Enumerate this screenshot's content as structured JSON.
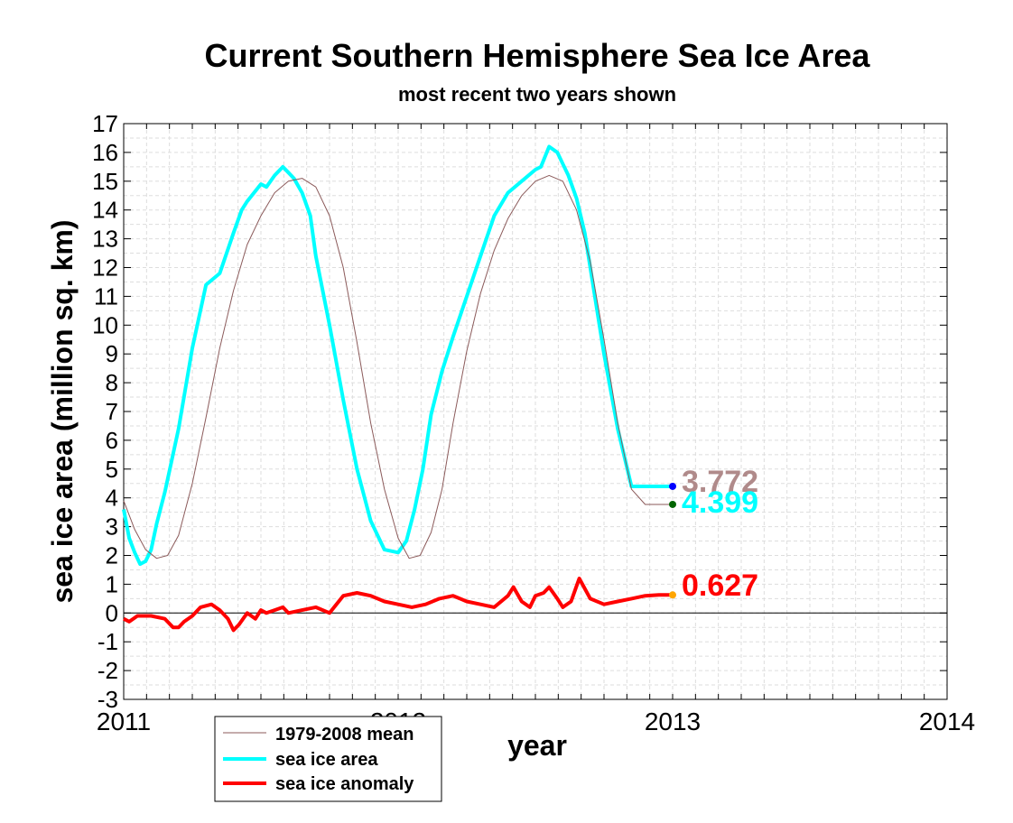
{
  "chart_data": {
    "type": "line",
    "title": "Current Southern Hemisphere Sea Ice Area",
    "subtitle": "most recent two years shown",
    "xlabel": "year",
    "ylabel": "sea ice area (million sq. km)",
    "xlim": [
      2011,
      2014
    ],
    "ylim": [
      -3,
      17
    ],
    "grid": true,
    "x_tick_labels": [
      "2011",
      "2012",
      "2013",
      "2014"
    ],
    "y_tick_labels": [
      "-3",
      "-2",
      "-1",
      "0",
      "1",
      "2",
      "3",
      "4",
      "5",
      "6",
      "7",
      "8",
      "9",
      "10",
      "11",
      "12",
      "13",
      "14",
      "15",
      "16",
      "17"
    ],
    "legend": {
      "placement": "bottom-left",
      "entries": [
        "1979-2008 mean",
        "sea ice area",
        "sea ice anomaly"
      ]
    },
    "series": [
      {
        "name": "1979-2008 mean",
        "color": "#8b5a5a",
        "x": [
          2011.0,
          2011.04,
          2011.08,
          2011.12,
          2011.16,
          2011.2,
          2011.25,
          2011.3,
          2011.35,
          2011.4,
          2011.45,
          2011.5,
          2011.55,
          2011.6,
          2011.65,
          2011.7,
          2011.75,
          2011.8,
          2011.85,
          2011.9,
          2011.95,
          2012.0,
          2012.04,
          2012.08,
          2012.12,
          2012.16,
          2012.2,
          2012.25,
          2012.3,
          2012.35,
          2012.4,
          2012.45,
          2012.5,
          2012.55,
          2012.6,
          2012.65,
          2012.7,
          2012.75,
          2012.8,
          2012.85,
          2012.9,
          2012.95,
          2013.0
        ],
        "values": [
          3.9,
          2.9,
          2.2,
          1.9,
          2.0,
          2.7,
          4.5,
          6.8,
          9.2,
          11.2,
          12.8,
          13.8,
          14.6,
          15.0,
          15.1,
          14.8,
          13.8,
          12.0,
          9.4,
          6.6,
          4.3,
          2.6,
          1.9,
          2.0,
          2.8,
          4.3,
          6.6,
          9.1,
          11.1,
          12.6,
          13.7,
          14.5,
          15.0,
          15.2,
          15.0,
          14.0,
          12.2,
          9.5,
          6.6,
          4.3,
          3.772,
          3.772,
          3.772
        ]
      },
      {
        "name": "sea ice area",
        "color": "#00ffff",
        "x": [
          2011.0,
          2011.02,
          2011.04,
          2011.06,
          2011.08,
          2011.1,
          2011.12,
          2011.15,
          2011.2,
          2011.25,
          2011.3,
          2011.35,
          2011.4,
          2011.43,
          2011.45,
          2011.5,
          2011.52,
          2011.55,
          2011.58,
          2011.6,
          2011.62,
          2011.65,
          2011.68,
          2011.7,
          2011.75,
          2011.8,
          2011.85,
          2011.9,
          2011.95,
          2012.0,
          2012.03,
          2012.06,
          2012.09,
          2012.12,
          2012.16,
          2012.2,
          2012.25,
          2012.3,
          2012.35,
          2012.4,
          2012.45,
          2012.5,
          2012.52,
          2012.55,
          2012.58,
          2012.6,
          2012.62,
          2012.65,
          2012.68,
          2012.7,
          2012.75,
          2012.8,
          2012.85,
          2012.9,
          2012.95,
          2012.99
        ],
        "values": [
          3.6,
          2.6,
          2.1,
          1.7,
          1.8,
          2.2,
          3.1,
          4.2,
          6.4,
          9.2,
          11.4,
          11.8,
          13.2,
          14.0,
          14.3,
          14.9,
          14.8,
          15.2,
          15.5,
          15.3,
          15.1,
          14.6,
          13.8,
          12.4,
          10.0,
          7.4,
          5.0,
          3.2,
          2.2,
          2.1,
          2.5,
          3.6,
          5.0,
          6.9,
          8.4,
          9.6,
          11.0,
          12.4,
          13.8,
          14.6,
          15.0,
          15.4,
          15.5,
          16.2,
          16.0,
          15.6,
          15.2,
          14.4,
          13.2,
          12.0,
          9.0,
          6.4,
          4.399,
          4.399,
          4.399,
          4.399
        ]
      },
      {
        "name": "sea ice anomaly",
        "color": "#ff0000",
        "x": [
          2011.0,
          2011.02,
          2011.05,
          2011.1,
          2011.15,
          2011.18,
          2011.2,
          2011.22,
          2011.25,
          2011.28,
          2011.32,
          2011.35,
          2011.38,
          2011.4,
          2011.42,
          2011.45,
          2011.48,
          2011.5,
          2011.52,
          2011.55,
          2011.58,
          2011.6,
          2011.65,
          2011.7,
          2011.75,
          2011.8,
          2011.85,
          2011.9,
          2011.95,
          2012.0,
          2012.05,
          2012.1,
          2012.15,
          2012.2,
          2012.25,
          2012.3,
          2012.35,
          2012.4,
          2012.42,
          2012.45,
          2012.48,
          2012.5,
          2012.53,
          2012.55,
          2012.58,
          2012.6,
          2012.63,
          2012.66,
          2012.7,
          2012.75,
          2012.8,
          2012.85,
          2012.9,
          2012.95,
          2013.0
        ],
        "values": [
          -0.2,
          -0.3,
          -0.1,
          -0.1,
          -0.2,
          -0.5,
          -0.5,
          -0.3,
          -0.1,
          0.2,
          0.3,
          0.1,
          -0.2,
          -0.6,
          -0.4,
          0.0,
          -0.2,
          0.1,
          0.0,
          0.1,
          0.2,
          0.0,
          0.1,
          0.2,
          0.0,
          0.6,
          0.7,
          0.6,
          0.4,
          0.3,
          0.2,
          0.3,
          0.5,
          0.6,
          0.4,
          0.3,
          0.2,
          0.6,
          0.9,
          0.4,
          0.2,
          0.6,
          0.7,
          0.9,
          0.5,
          0.2,
          0.4,
          1.2,
          0.5,
          0.3,
          0.4,
          0.5,
          0.6,
          0.627,
          0.627
        ]
      }
    ],
    "endpoint_labels": [
      {
        "text": "3.772",
        "color": "#b08a8a",
        "value": 3.772
      },
      {
        "text": "4.399",
        "color": "#00ffff",
        "value": 4.399
      },
      {
        "text": "0.627",
        "color": "#ff0000",
        "value": 0.627
      }
    ],
    "endpoint_markers": [
      {
        "series": "sea ice area",
        "color": "#0000ff",
        "value": 4.399
      },
      {
        "series": "1979-2008 mean",
        "color": "#006400",
        "value": 3.772
      },
      {
        "series": "sea ice anomaly",
        "color": "#ffa500",
        "value": 0.627
      }
    ]
  }
}
